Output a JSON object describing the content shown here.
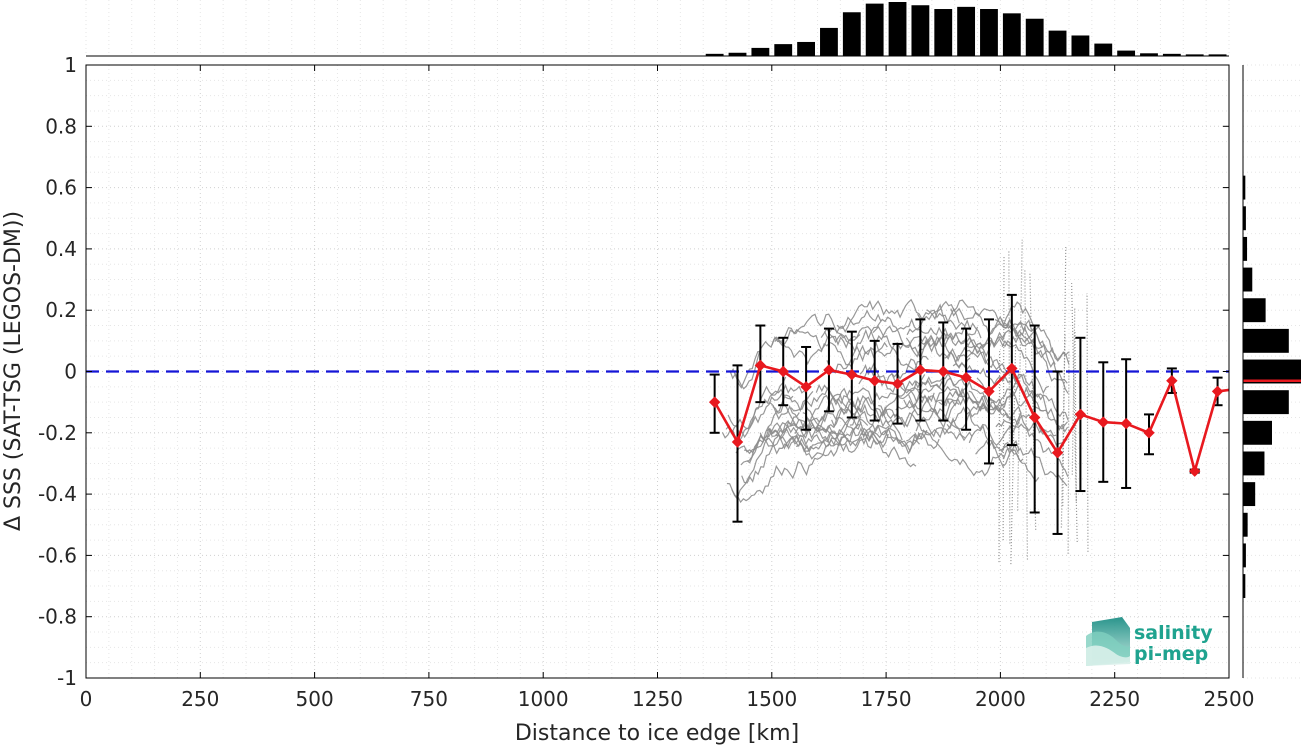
{
  "chart_data": {
    "type": "line",
    "xlabel": "Distance to ice edge [km]",
    "ylabel": "Δ SSS (SAT-TSG (LEGOS-DM))",
    "xlim": [
      0,
      2500
    ],
    "ylim": [
      -1,
      1
    ],
    "x_ticks": [
      0,
      250,
      500,
      750,
      1000,
      1250,
      1500,
      1750,
      2000,
      2250,
      2500
    ],
    "y_ticks": [
      -1,
      -0.8,
      -0.6,
      -0.4,
      -0.2,
      0,
      0.2,
      0.4,
      0.6,
      0.8,
      1
    ],
    "y_tick_labels": [
      "-1",
      "-0.8",
      "-0.6",
      "-0.4",
      "-0.2",
      "0",
      "0.2",
      "0.4",
      "0.6",
      "0.8",
      "1"
    ],
    "grid": true,
    "zero_line": 0,
    "series": [
      {
        "kind": "binned-mean",
        "x": [
          1375,
          1425,
          1475,
          1525,
          1575,
          1625,
          1675,
          1725,
          1775,
          1825,
          1875,
          1925,
          1975,
          2025,
          2075,
          2125,
          2175,
          2225,
          2275,
          2325,
          2375,
          2425,
          2475
        ],
        "y": [
          -0.1,
          -0.23,
          0.02,
          0.0,
          -0.05,
          0.005,
          -0.01,
          -0.03,
          -0.04,
          0.005,
          0.0,
          -0.02,
          -0.065,
          0.01,
          -0.15,
          -0.265,
          -0.14,
          -0.165,
          -0.17,
          -0.2,
          -0.03,
          -0.325,
          -0.065
        ],
        "err_low": [
          -0.2,
          -0.49,
          -0.1,
          -0.11,
          -0.19,
          -0.13,
          -0.15,
          -0.16,
          -0.17,
          -0.16,
          -0.16,
          -0.19,
          -0.3,
          -0.24,
          -0.46,
          -0.53,
          -0.39,
          -0.36,
          -0.38,
          -0.27,
          -0.07,
          -0.33,
          -0.11
        ],
        "err_high": [
          -0.01,
          0.02,
          0.15,
          0.11,
          0.08,
          0.14,
          0.13,
          0.1,
          0.09,
          0.17,
          0.16,
          0.14,
          0.17,
          0.25,
          0.15,
          0.0,
          0.11,
          0.03,
          0.04,
          -0.14,
          0.01,
          -0.32,
          -0.02
        ]
      },
      {
        "kind": "extension",
        "x": [
          2475,
          2500
        ],
        "y": [
          -0.065,
          -0.06
        ]
      }
    ],
    "top_histogram": {
      "bin_centers": [
        1375,
        1425,
        1475,
        1525,
        1575,
        1625,
        1675,
        1725,
        1775,
        1825,
        1875,
        1925,
        1975,
        2025,
        2075,
        2125,
        2175,
        2225,
        2275,
        2325,
        2375,
        2425,
        2475
      ],
      "relative_counts": [
        0.04,
        0.06,
        0.15,
        0.22,
        0.26,
        0.52,
        0.81,
        0.97,
        1.0,
        0.94,
        0.87,
        0.91,
        0.87,
        0.79,
        0.69,
        0.47,
        0.38,
        0.23,
        0.1,
        0.05,
        0.04,
        0.03,
        0.03
      ]
    },
    "right_histogram": {
      "bin_centers": [
        0.6,
        0.5,
        0.4,
        0.3,
        0.2,
        0.1,
        0.0,
        -0.1,
        -0.2,
        -0.3,
        -0.4,
        -0.5,
        -0.6,
        -0.7
      ],
      "relative_counts": [
        0.04,
        0.05,
        0.07,
        0.16,
        0.39,
        0.79,
        1.0,
        0.79,
        0.5,
        0.37,
        0.21,
        0.08,
        0.05,
        0.04
      ],
      "mean_line": -0.03
    }
  },
  "colors": {
    "mean_line": "#e8191f",
    "zero_line": "#1515d6",
    "error_bars": "#000000",
    "scatter": "#8c8c8c",
    "histograms": "#000000",
    "logo_text": "#1fa38f"
  },
  "logo": {
    "line1": "salinity",
    "line2": "pi-mep"
  }
}
